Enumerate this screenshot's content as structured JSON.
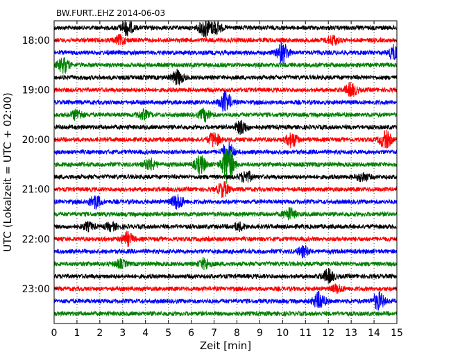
{
  "chart_data": {
    "type": "line",
    "title": "BW.FURT..EHZ 2014-06-03",
    "xlabel": "Zeit  [min]",
    "ylabel": "UTC (Lokalzeit = UTC + 02:00)",
    "xlim": [
      0,
      15
    ],
    "x_ticks": [
      "0",
      "1",
      "2",
      "3",
      "4",
      "5",
      "6",
      "7",
      "8",
      "9",
      "10",
      "11",
      "12",
      "13",
      "14",
      "15"
    ],
    "y_ticks": [
      "18:00",
      "19:00",
      "20:00",
      "21:00",
      "22:00",
      "23:00"
    ],
    "grid": "vertical dotted at each minute",
    "colors": [
      "#000000",
      "#ff0000",
      "#0000ff",
      "#008000"
    ],
    "series": [
      {
        "start": "17:45",
        "color": "#000000",
        "events": [
          {
            "t": 3.2,
            "a": 10
          },
          {
            "t": 6.6,
            "a": 12
          },
          {
            "t": 7.1,
            "a": 8
          }
        ]
      },
      {
        "start": "18:00",
        "color": "#ff0000",
        "events": [
          {
            "t": 2.9,
            "a": 6
          },
          {
            "t": 12.2,
            "a": 6
          }
        ]
      },
      {
        "start": "18:15",
        "color": "#0000ff",
        "events": [
          {
            "t": 10.0,
            "a": 14
          },
          {
            "t": 14.9,
            "a": 10
          }
        ]
      },
      {
        "start": "18:30",
        "color": "#008000",
        "events": [
          {
            "t": 0.4,
            "a": 10
          }
        ]
      },
      {
        "start": "18:45",
        "color": "#000000",
        "events": [
          {
            "t": 5.4,
            "a": 10
          }
        ]
      },
      {
        "start": "19:00",
        "color": "#ff0000",
        "events": [
          {
            "t": 13.0,
            "a": 9
          }
        ]
      },
      {
        "start": "19:15",
        "color": "#0000ff",
        "events": [
          {
            "t": 7.5,
            "a": 14
          }
        ]
      },
      {
        "start": "19:30",
        "color": "#008000",
        "events": [
          {
            "t": 1.0,
            "a": 7
          },
          {
            "t": 3.9,
            "a": 6
          },
          {
            "t": 6.6,
            "a": 8
          }
        ]
      },
      {
        "start": "19:45",
        "color": "#000000",
        "events": [
          {
            "t": 8.2,
            "a": 9
          }
        ]
      },
      {
        "start": "20:00",
        "color": "#ff0000",
        "events": [
          {
            "t": 7.0,
            "a": 10
          },
          {
            "t": 10.4,
            "a": 10
          },
          {
            "t": 14.5,
            "a": 12
          }
        ]
      },
      {
        "start": "20:15",
        "color": "#0000ff",
        "events": [
          {
            "t": 7.6,
            "a": 14
          }
        ]
      },
      {
        "start": "20:30",
        "color": "#008000",
        "events": [
          {
            "t": 7.6,
            "a": 26
          },
          {
            "t": 4.2,
            "a": 8
          },
          {
            "t": 6.4,
            "a": 12
          }
        ]
      },
      {
        "start": "20:45",
        "color": "#000000",
        "events": [
          {
            "t": 8.4,
            "a": 8
          },
          {
            "t": 13.5,
            "a": 6
          }
        ]
      },
      {
        "start": "21:00",
        "color": "#ff0000",
        "events": [
          {
            "t": 7.4,
            "a": 10
          }
        ]
      },
      {
        "start": "21:15",
        "color": "#0000ff",
        "events": [
          {
            "t": 1.8,
            "a": 9
          },
          {
            "t": 5.4,
            "a": 10
          }
        ]
      },
      {
        "start": "21:30",
        "color": "#008000",
        "events": [
          {
            "t": 10.3,
            "a": 8
          }
        ]
      },
      {
        "start": "21:45",
        "color": "#000000",
        "events": [
          {
            "t": 1.5,
            "a": 5
          },
          {
            "t": 2.5,
            "a": 5
          },
          {
            "t": 8.1,
            "a": 5
          }
        ]
      },
      {
        "start": "22:00",
        "color": "#ff0000",
        "events": [
          {
            "t": 3.2,
            "a": 9
          }
        ]
      },
      {
        "start": "22:15",
        "color": "#0000ff",
        "events": [
          {
            "t": 10.9,
            "a": 7
          }
        ]
      },
      {
        "start": "22:30",
        "color": "#008000",
        "events": [
          {
            "t": 2.9,
            "a": 5
          },
          {
            "t": 6.6,
            "a": 7
          }
        ]
      },
      {
        "start": "22:45",
        "color": "#000000",
        "events": [
          {
            "t": 12.0,
            "a": 9
          }
        ]
      },
      {
        "start": "23:00",
        "color": "#ff0000",
        "events": [
          {
            "t": 12.4,
            "a": 5
          }
        ]
      },
      {
        "start": "23:15",
        "color": "#0000ff",
        "events": [
          {
            "t": 11.6,
            "a": 12
          },
          {
            "t": 14.2,
            "a": 12
          }
        ]
      },
      {
        "start": "23:30",
        "color": "#008000",
        "events": []
      }
    ]
  }
}
